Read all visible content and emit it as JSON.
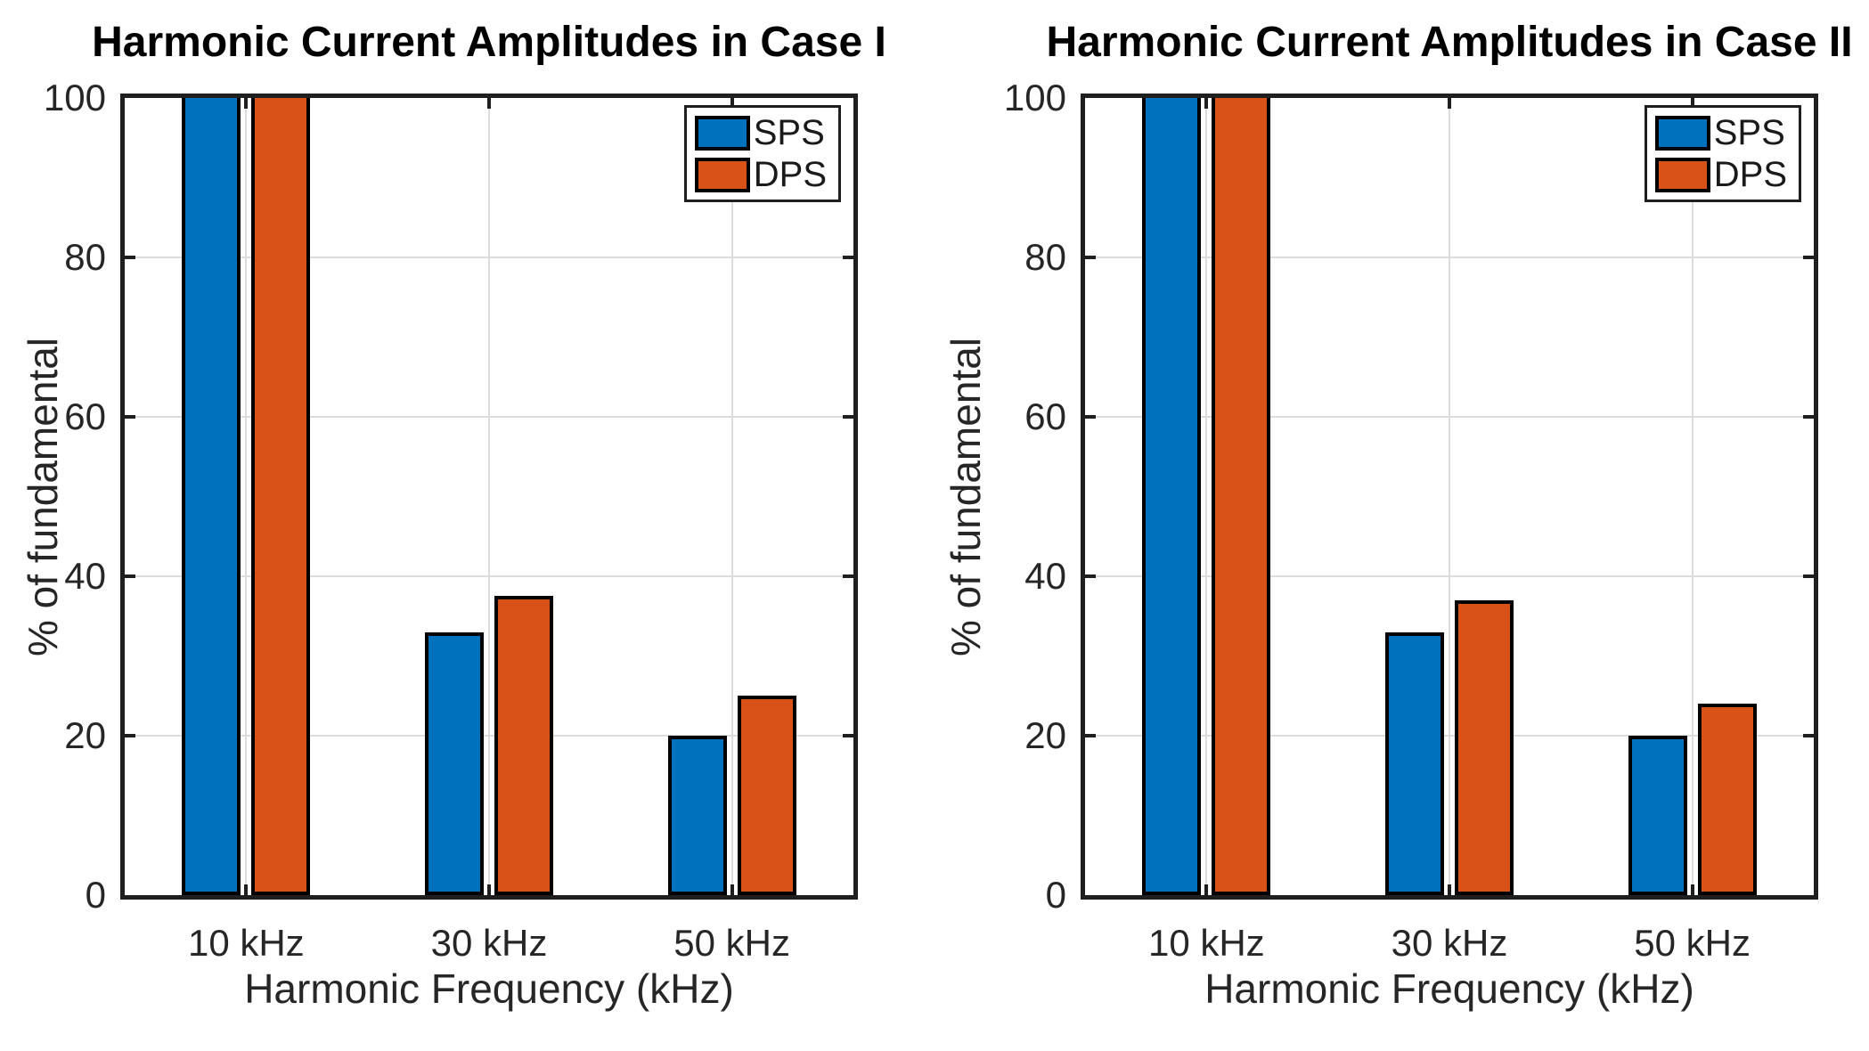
{
  "style": {
    "background": "#ffffff",
    "axis_color": "#1f1f1f",
    "grid_color": "#dcdcdc",
    "bar_edge_color": "#000000",
    "series_blue": "#0072BD",
    "series_orange": "#D95319"
  },
  "chart_data": [
    {
      "type": "bar",
      "title": "Harmonic Current Amplitudes in Case I",
      "xlabel": "Harmonic Frequency (kHz)",
      "ylabel": "% of fundamental",
      "categories": [
        "10 kHz",
        "30 kHz",
        "50 kHz"
      ],
      "series": [
        {
          "name": "SPS",
          "color": "#0072BD",
          "values": [
            100,
            33,
            20
          ]
        },
        {
          "name": "DPS",
          "color": "#D95319",
          "values": [
            100,
            37.5,
            25
          ]
        }
      ],
      "ylim": [
        0,
        100
      ],
      "yticks": [
        0,
        20,
        40,
        60,
        80,
        100
      ],
      "grid": true,
      "legend_position": "top-right"
    },
    {
      "type": "bar",
      "title": "Harmonic Current Amplitudes in Case II",
      "xlabel": "Harmonic Frequency (kHz)",
      "ylabel": "% of fundamental",
      "categories": [
        "10 kHz",
        "30 kHz",
        "50 kHz"
      ],
      "series": [
        {
          "name": "SPS",
          "color": "#0072BD",
          "values": [
            100,
            33,
            20
          ]
        },
        {
          "name": "DPS",
          "color": "#D95319",
          "values": [
            100,
            37,
            24
          ]
        }
      ],
      "ylim": [
        0,
        100
      ],
      "yticks": [
        0,
        20,
        40,
        60,
        80,
        100
      ],
      "grid": true,
      "legend_position": "top-right"
    }
  ]
}
